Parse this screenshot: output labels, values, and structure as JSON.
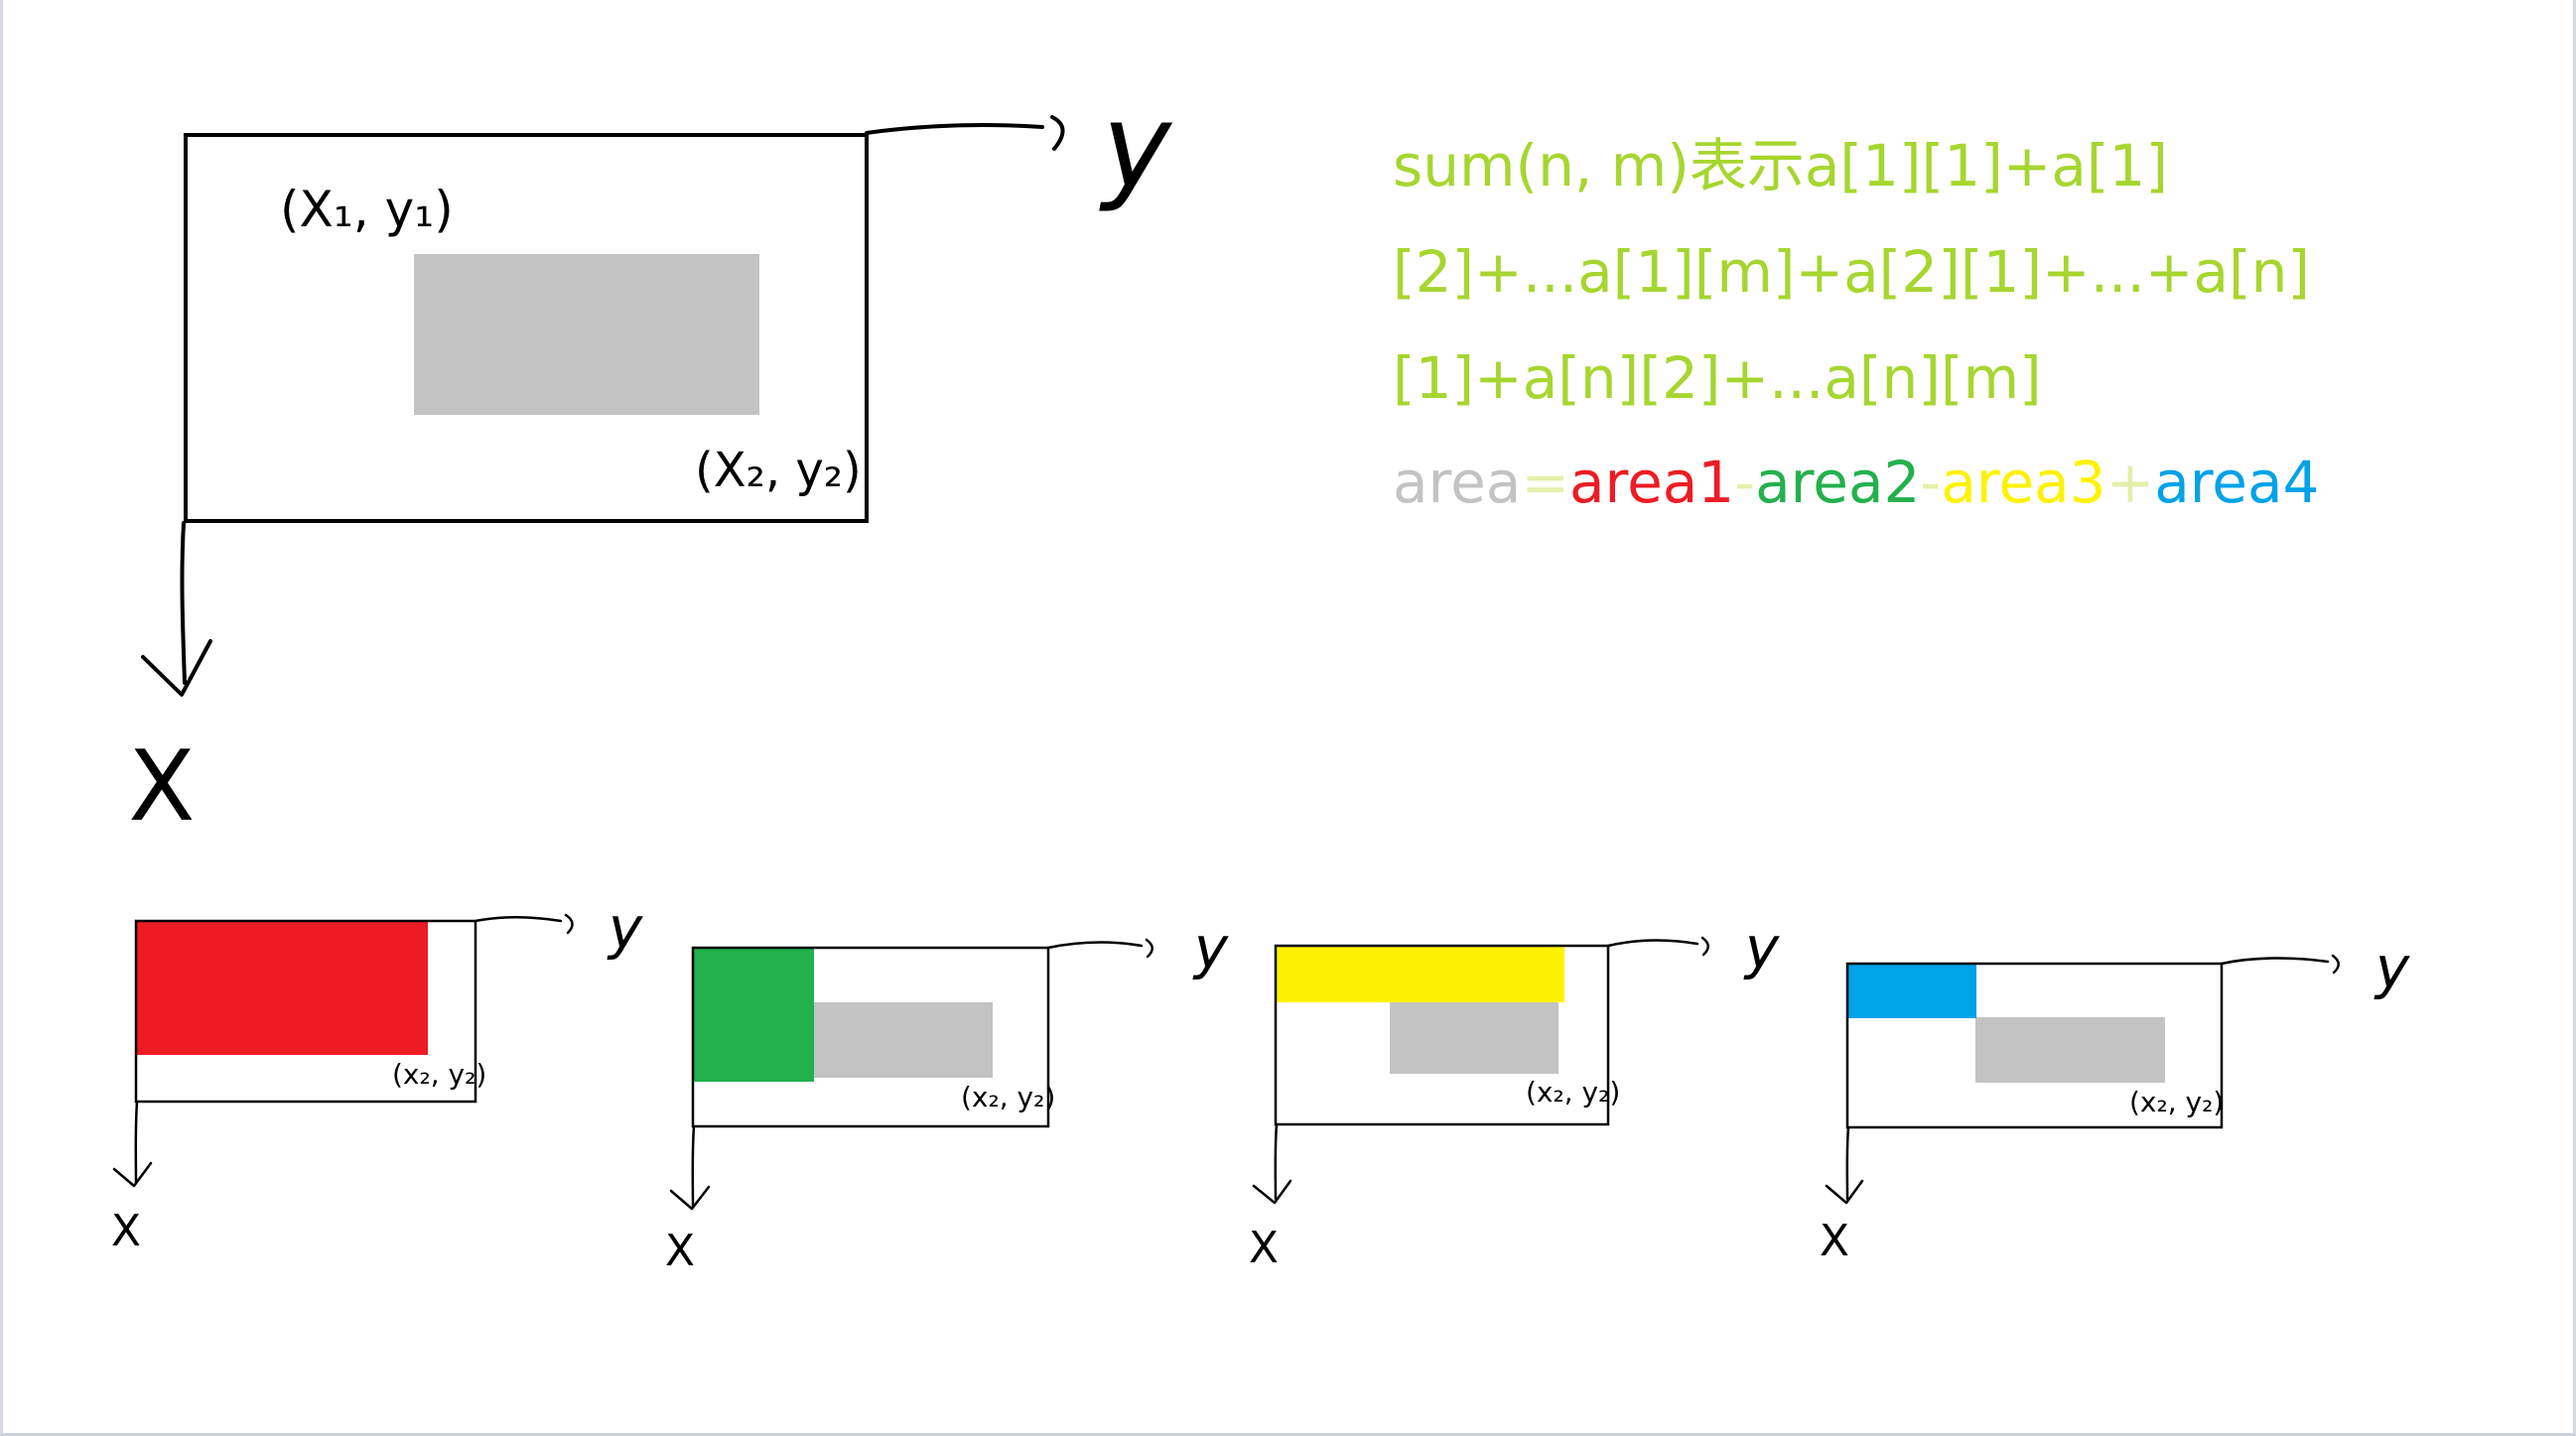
{
  "colors": {
    "formula_text": "#a6d62f",
    "area": "#c3c3c3",
    "area1": "#ed1c24",
    "area2": "#22b14c",
    "area3": "#fff200",
    "area4": "#00a2e8",
    "plus_minus_faint": "#e4f0a8"
  },
  "main_figure": {
    "x_axis_label": "X",
    "y_axis_label": "y",
    "corner1_label": "(X₁, y₁)",
    "corner2_label": "(X₂, y₂)"
  },
  "formula": {
    "line1": "sum(n, m)表示a[1][1]+a[1]",
    "line2": "[2]+...a[1][m]+a[2][1]+...+a[n]",
    "line3": "[1]+a[n][2]+...a[n][m]",
    "equation": {
      "area": "area",
      "eq": "=",
      "area1": "area1",
      "minus1": "-",
      "area2": "area2",
      "minus2": "-",
      "area3": "area3",
      "plus": "+",
      "area4": "area4"
    }
  },
  "panels": [
    {
      "x_axis_label": "X",
      "y_axis_label": "y",
      "corner_label": "(x₂, y₂)",
      "highlight": "area1"
    },
    {
      "x_axis_label": "X",
      "y_axis_label": "y",
      "corner_label": "(x₂, y₂)",
      "highlight": "area2"
    },
    {
      "x_axis_label": "X",
      "y_axis_label": "y",
      "corner_label": "(x₂, y₂)",
      "highlight": "area3"
    },
    {
      "x_axis_label": "X",
      "y_axis_label": "y",
      "corner_label": "(x₂, y₂)",
      "highlight": "area4"
    }
  ]
}
